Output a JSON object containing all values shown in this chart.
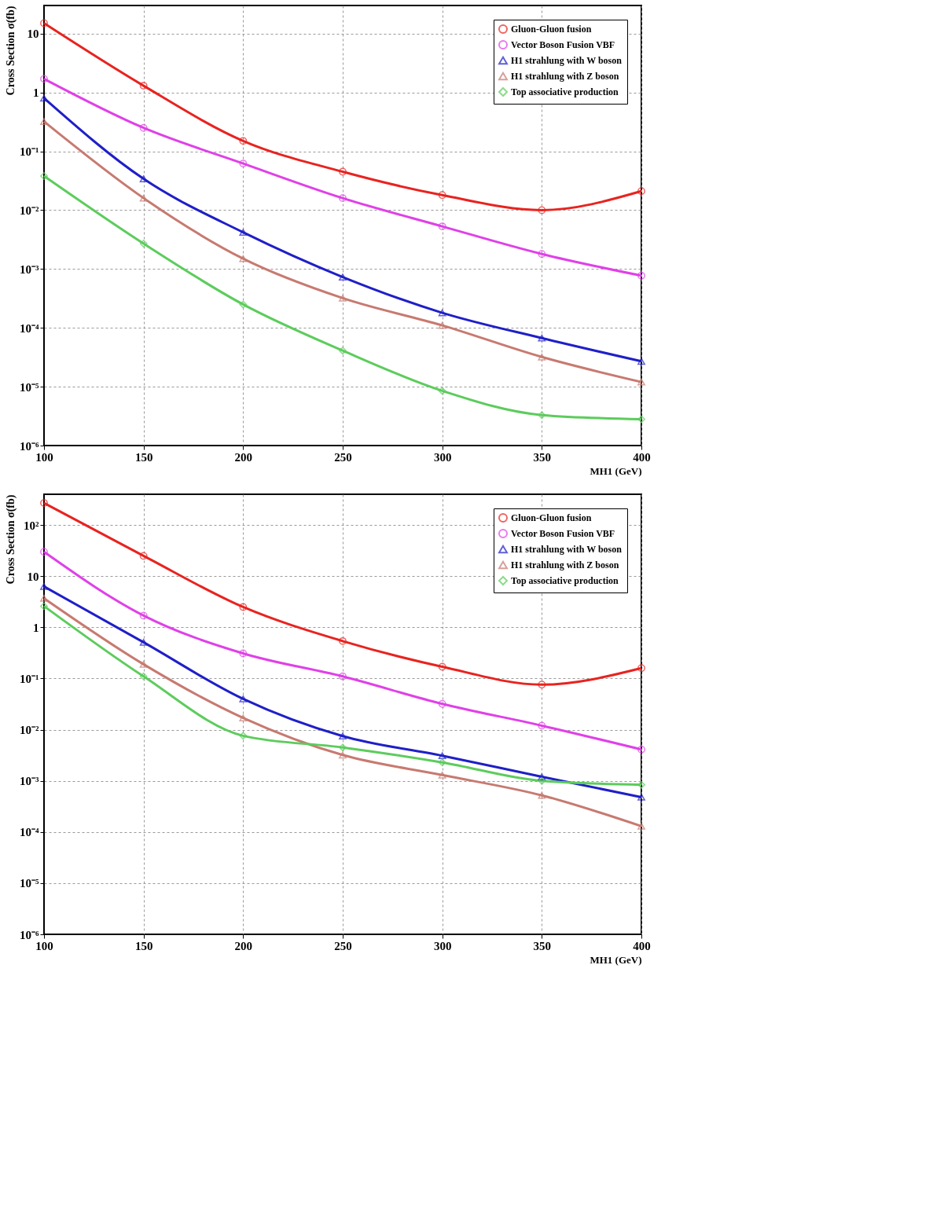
{
  "chart_data": [
    {
      "type": "line",
      "xlabel": "MH1 (GeV)",
      "ylabel": "Cross Section  σ(fb)",
      "log": "y",
      "grid": true,
      "legend": "top right",
      "line_style": "solid",
      "x": [
        100,
        150,
        200,
        250,
        300,
        350,
        400
      ],
      "xlim": [
        100,
        400
      ],
      "xticks": [
        100,
        150,
        200,
        250,
        300,
        350,
        400
      ],
      "ylim": [
        1e-06,
        30
      ],
      "yticks": [
        {
          "value": 1e-06,
          "label": "10⁻⁶"
        },
        {
          "value": 1e-05,
          "label": "10⁻⁵"
        },
        {
          "value": 0.0001,
          "label": "10⁻⁴"
        },
        {
          "value": 0.001,
          "label": "10⁻³"
        },
        {
          "value": 0.01,
          "label": "10⁻²"
        },
        {
          "value": 0.1,
          "label": "10⁻¹"
        },
        1,
        10
      ],
      "series": [
        {
          "name": "Gluon-Gluon fusion",
          "color": "#e8231f",
          "marker": "circle",
          "values": [
            15,
            1.3,
            0.15,
            0.045,
            0.018,
            0.01,
            0.021
          ]
        },
        {
          "name": "Vector Boson Fusion VBF",
          "color": "#e040e8",
          "marker": "circle",
          "values": [
            1.7,
            0.25,
            0.062,
            0.016,
            0.0053,
            0.0018,
            0.00077
          ]
        },
        {
          "name": "H1 strahlung with W boson",
          "color": "#1f1fc8",
          "marker": "triangle",
          "values": [
            0.8,
            0.034,
            0.0042,
            0.00073,
            0.00018,
            6.7e-05,
            2.7e-05
          ]
        },
        {
          "name": "H1 strahlung with Z boson",
          "color": "#c77a70",
          "marker": "triangle",
          "values": [
            0.32,
            0.016,
            0.0015,
            0.00032,
            0.00011,
            3.2e-05,
            1.2e-05
          ]
        },
        {
          "name": "Top associative production",
          "color": "#5ccc5c",
          "marker": "diamond",
          "values": [
            0.038,
            0.0027,
            0.00025,
            4.1e-05,
            8.5e-06,
            3.3e-06,
            2.8e-06
          ]
        }
      ]
    },
    {
      "type": "line",
      "xlabel": "MH1 (GeV)",
      "ylabel": "Cross Section  σ(fb)",
      "log": "y",
      "grid": true,
      "legend": "top right",
      "line_style": "solid",
      "x": [
        100,
        150,
        200,
        250,
        300,
        350,
        400
      ],
      "xlim": [
        100,
        400
      ],
      "xticks": [
        100,
        150,
        200,
        250,
        300,
        350,
        400
      ],
      "ylim": [
        1e-06,
        400
      ],
      "yticks": [
        {
          "value": 1e-06,
          "label": "10⁻⁶"
        },
        {
          "value": 1e-05,
          "label": "10⁻⁵"
        },
        {
          "value": 0.0001,
          "label": "10⁻⁴"
        },
        {
          "value": 0.001,
          "label": "10⁻³"
        },
        {
          "value": 0.01,
          "label": "10⁻²"
        },
        {
          "value": 0.1,
          "label": "10⁻¹"
        },
        1,
        10,
        {
          "value": 100,
          "label": "10²"
        }
      ],
      "series": [
        {
          "name": "Gluon-Gluon fusion",
          "color": "#e8231f",
          "marker": "circle",
          "values": [
            270,
            25,
            2.5,
            0.54,
            0.17,
            0.076,
            0.16
          ]
        },
        {
          "name": "Vector Boson Fusion VBF",
          "color": "#e040e8",
          "marker": "circle",
          "values": [
            30,
            1.7,
            0.31,
            0.11,
            0.032,
            0.012,
            0.0041
          ]
        },
        {
          "name": "H1 strahlung with W boson",
          "color": "#1f1fc8",
          "marker": "triangle",
          "values": [
            6.3,
            0.51,
            0.04,
            0.0075,
            0.0031,
            0.0012,
            0.00048
          ]
        },
        {
          "name": "H1 strahlung with Z boson",
          "color": "#c77a70",
          "marker": "triangle",
          "values": [
            3.7,
            0.19,
            0.017,
            0.0032,
            0.0013,
            0.00052,
            0.00013
          ]
        },
        {
          "name": "Top associative production",
          "color": "#5ccc5c",
          "marker": "diamond",
          "values": [
            2.6,
            0.11,
            0.0076,
            0.0045,
            0.0023,
            0.001,
            0.00084
          ]
        }
      ]
    }
  ]
}
